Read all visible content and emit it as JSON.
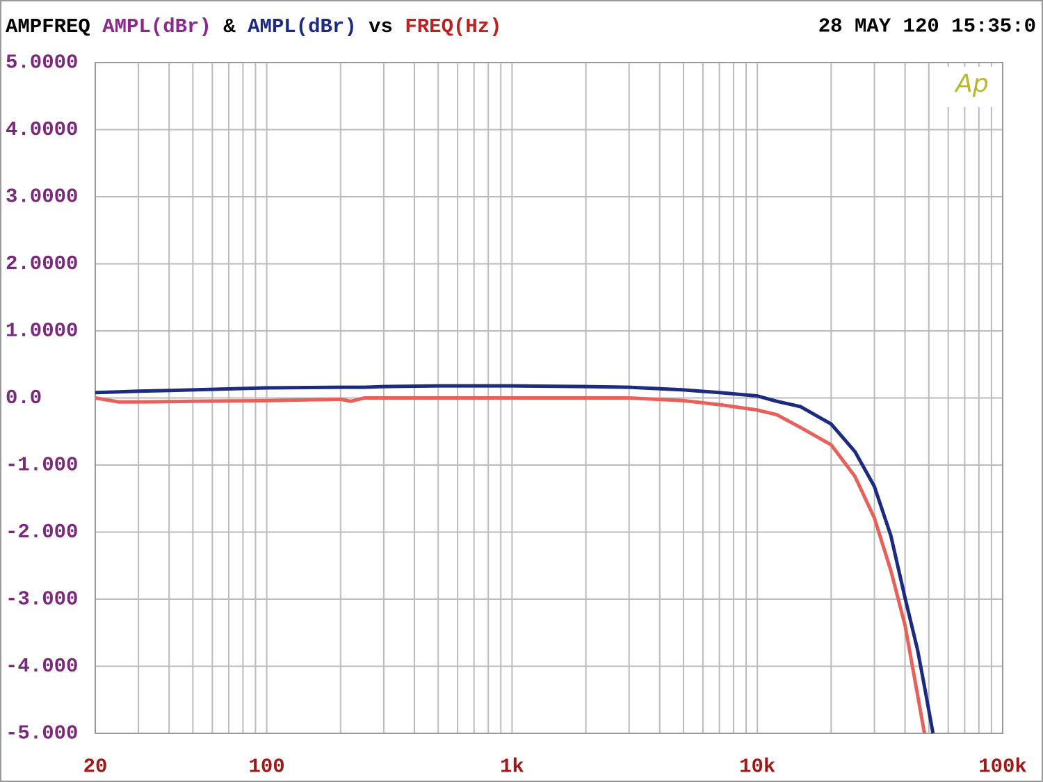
{
  "chart_data": {
    "type": "line",
    "title": "AMPFREQ",
    "joiner": "&",
    "versus": "vs",
    "xlabel": "FREQ(Hz)",
    "timestamp": "28 MAY 120 15:35:0",
    "logo": "Ap",
    "x": [
      20,
      25,
      30,
      50,
      100,
      200,
      220,
      250,
      300,
      500,
      1000,
      2000,
      3000,
      5000,
      7000,
      10000,
      12000,
      15000,
      20000,
      25000,
      30000,
      35000,
      40000,
      45000,
      48000,
      52000
    ],
    "series": [
      {
        "name": "AMPL(dBr)",
        "name_color": "#8a2a8a",
        "color": "#e8605a",
        "values": [
          0.0,
          -0.06,
          -0.06,
          -0.05,
          -0.04,
          -0.02,
          -0.05,
          0.0,
          0.0,
          0.0,
          0.0,
          0.0,
          0.0,
          -0.04,
          -0.1,
          -0.18,
          -0.25,
          -0.44,
          -0.7,
          -1.17,
          -1.79,
          -2.57,
          -3.39,
          -4.43,
          -5.0,
          null
        ]
      },
      {
        "name": "AMPL(dBr)",
        "name_color": "#1c2a80",
        "color": "#1c2a80",
        "values": [
          0.08,
          0.09,
          0.1,
          0.12,
          0.15,
          0.16,
          0.16,
          0.16,
          0.17,
          0.18,
          0.18,
          0.17,
          0.16,
          0.12,
          0.08,
          0.03,
          -0.05,
          -0.13,
          -0.39,
          -0.8,
          -1.32,
          -2.05,
          -2.98,
          -3.76,
          -4.3,
          -5.0
        ]
      }
    ],
    "xlim": [
      20,
      100000
    ],
    "xlog": true,
    "xticks": [
      20,
      100,
      {
        "value": 1000,
        "label": "1k"
      },
      {
        "value": 10000,
        "label": "10k"
      },
      {
        "value": 100000,
        "label": "100k"
      }
    ],
    "xminor": [
      30,
      40,
      50,
      60,
      70,
      80,
      90,
      200,
      300,
      400,
      500,
      600,
      700,
      800,
      900,
      2000,
      3000,
      4000,
      5000,
      6000,
      7000,
      8000,
      9000,
      20000,
      30000,
      40000,
      50000,
      60000,
      70000,
      80000,
      90000
    ],
    "ylim": [
      -5,
      5
    ],
    "yticks": [
      {
        "value": 5,
        "label": "5.0000"
      },
      {
        "value": 4,
        "label": "4.0000"
      },
      {
        "value": 3,
        "label": "3.0000"
      },
      {
        "value": 2,
        "label": "2.0000"
      },
      {
        "value": 1,
        "label": "1.0000"
      },
      {
        "value": 0,
        "label": "0.0"
      },
      {
        "value": -1,
        "label": "-1.000"
      },
      {
        "value": -2,
        "label": "-2.000"
      },
      {
        "value": -3,
        "label": "-3.000"
      },
      {
        "value": -4,
        "label": "-4.000"
      },
      {
        "value": -5,
        "label": "-5.000"
      }
    ],
    "grid": true,
    "title_color": "#000000",
    "ytick_color": "#7a2a7a",
    "xtick_color": "#a01818",
    "xlabel_color": "#c02020",
    "logo_color": "#b8b830"
  }
}
